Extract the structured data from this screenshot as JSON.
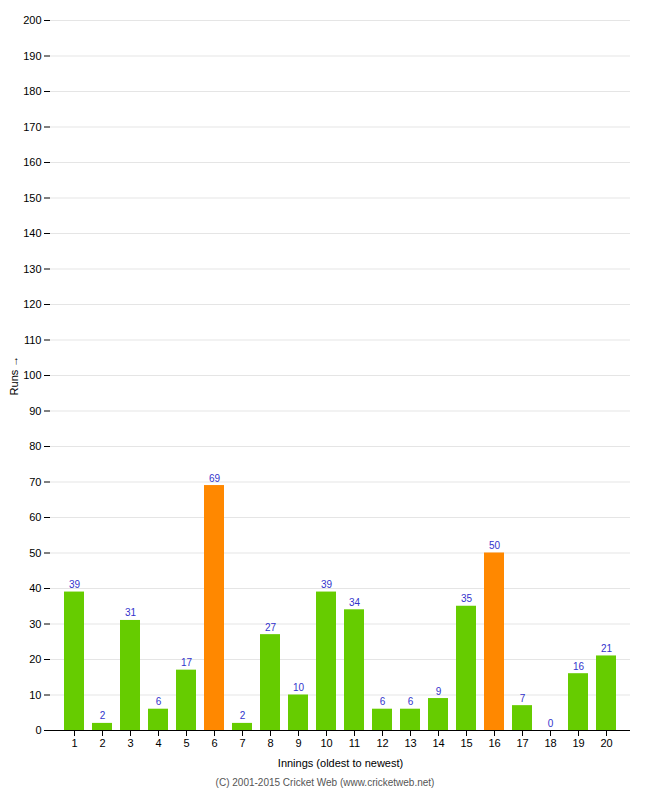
{
  "chart_data": {
    "type": "bar",
    "xlabel": "Innings (oldest to newest)",
    "ylabel": "Runs",
    "footer": "(C) 2001-2015 Cricket Web (www.cricketweb.net)",
    "categories": [
      1,
      2,
      3,
      4,
      5,
      6,
      7,
      8,
      9,
      10,
      11,
      12,
      13,
      14,
      15,
      16,
      17,
      18,
      19,
      20
    ],
    "values": [
      39,
      2,
      31,
      6,
      17,
      69,
      2,
      27,
      10,
      39,
      34,
      6,
      6,
      9,
      35,
      50,
      7,
      0,
      16,
      21
    ],
    "colors": [
      "#66cc00",
      "#66cc00",
      "#66cc00",
      "#66cc00",
      "#66cc00",
      "#ff8800",
      "#66cc00",
      "#66cc00",
      "#66cc00",
      "#66cc00",
      "#66cc00",
      "#66cc00",
      "#66cc00",
      "#66cc00",
      "#66cc00",
      "#ff8800",
      "#66cc00",
      "#66cc00",
      "#66cc00",
      "#66cc00"
    ],
    "ylim": [
      0,
      200
    ],
    "yticks": [
      0,
      10,
      20,
      30,
      40,
      50,
      60,
      70,
      80,
      90,
      100,
      110,
      120,
      130,
      140,
      150,
      160,
      170,
      180,
      190,
      200
    ],
    "grid": true,
    "data_labels": true
  }
}
